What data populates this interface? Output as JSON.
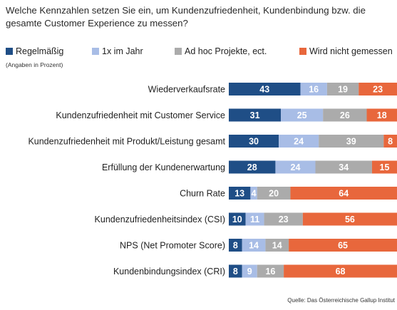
{
  "header": {
    "question": "Welche Kennzahlen setzen Sie ein, um Kundenzufriedenheit, Kundenbindung bzw. die gesamte Customer Experience zu messen?",
    "unit_note": "(Angaben in Prozent)"
  },
  "footer": {
    "source": "Quelle: Das Österreichische Gallup Institut"
  },
  "chart_data": {
    "type": "bar",
    "orientation": "horizontal",
    "stacked": true,
    "legend_position": "top",
    "grid": false,
    "title": "Welche Kennzahlen setzen Sie ein, um Kundenzufriedenheit, Kundenbindung bzw. die gesamte Customer Experience zu messen?",
    "unit": "(Angaben in Prozent)",
    "categories": [
      "Wiederverkaufsrate",
      "Kundenzufriedenheit mit Customer Service",
      "Kundenzufriedenheit mit Produkt/Leistung gesamt",
      "Erfüllung der Kundenerwartung",
      "Churn Rate",
      "Kundenzufriedenheitsindex (CSI)",
      "NPS (Net Promoter Score)",
      "Kundenbindungsindex (CRI)"
    ],
    "series": [
      {
        "name": "Regelmäßig",
        "color": "#1f4e86",
        "label_color": "#ffffff",
        "values": [
          43,
          31,
          30,
          28,
          13,
          10,
          8,
          8
        ]
      },
      {
        "name": "1x im Jahr",
        "color": "#a8bde6",
        "label_color": "#ffffff",
        "values": [
          16,
          25,
          24,
          24,
          4,
          11,
          14,
          9
        ]
      },
      {
        "name": "Ad hoc Projekte, ect.",
        "color": "#ababab",
        "label_color": "#ffffff",
        "values": [
          19,
          26,
          39,
          34,
          20,
          23,
          14,
          16
        ]
      },
      {
        "name": "Wird nicht gemessen",
        "color": "#e8673c",
        "label_color": "#ffffff",
        "values": [
          23,
          18,
          8,
          15,
          64,
          56,
          65,
          68
        ]
      }
    ]
  }
}
